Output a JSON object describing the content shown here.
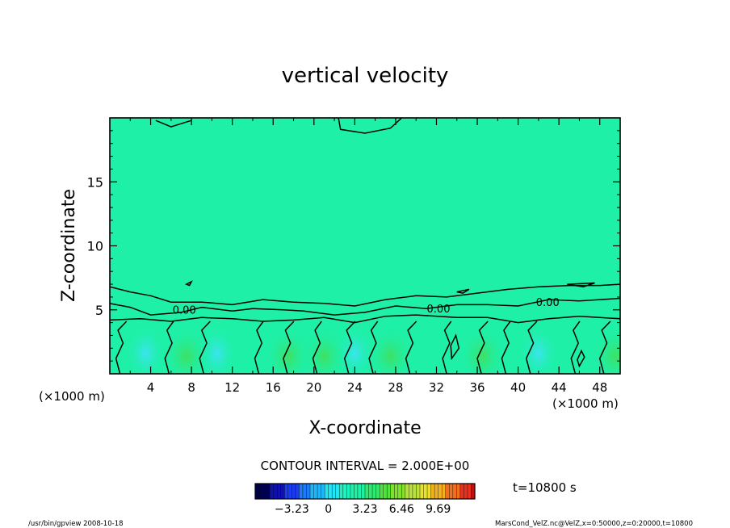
{
  "chart_data": {
    "type": "contour",
    "title": "vertical velocity",
    "xlabel": "X-coordinate",
    "ylabel": "Z-coordinate",
    "x_unit": "(×1000 m)",
    "y_unit": "(×1000 m)",
    "xlim": [
      0,
      50
    ],
    "ylim": [
      0,
      20
    ],
    "x_ticks": [
      4,
      8,
      12,
      16,
      20,
      24,
      28,
      32,
      36,
      40,
      44,
      48
    ],
    "y_ticks": [
      5,
      10,
      15
    ],
    "contour_interval_label": "CONTOUR INTERVAL = 2.000E+00",
    "contour_labels": [
      "0.00",
      "0.00",
      "0.00"
    ],
    "field_summary": {
      "background_value": 0,
      "active_layer_top_z": 5,
      "positive_cells_x": [
        7.5,
        17.5,
        21,
        27.5,
        36.5,
        49.5
      ],
      "negative_cells_x": [
        3.5,
        10.5,
        24,
        42
      ]
    },
    "colorbar": {
      "ticks": [
        -3.23,
        0,
        3.23,
        6.46,
        9.69
      ],
      "tick_labels": [
        "−3.23",
        "0",
        "3.23",
        "6.46",
        "9.69"
      ],
      "range": [
        -6.46,
        12.92
      ]
    },
    "time_label": "t=10800 s",
    "footer_left": "/usr/bin/gpview   2008-10-18",
    "footer_right": "MarsCond_VelZ.nc@VelZ,x=0:50000,z=0:20000,t=10800"
  }
}
